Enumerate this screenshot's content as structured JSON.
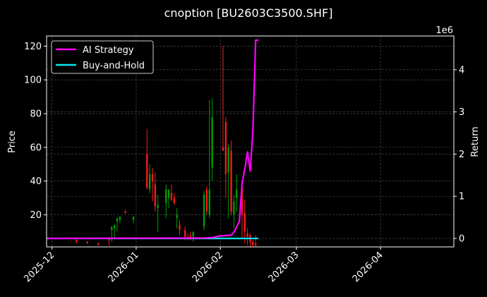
{
  "chart_data": {
    "type": "candlestick-with-line-overlay",
    "title": "cnoption [BU2603C3500.SHF]",
    "xlabel": "",
    "ylabel_left": "Price",
    "ylabel_right": "Return",
    "right_axis_exponent": "1e6",
    "grid": true,
    "legend_placement": "top-left",
    "x_ticks": [
      "2025-12",
      "2026-01",
      "2026-02",
      "2026-03",
      "2026-04"
    ],
    "xlim": [
      "2025-11-29",
      "2026-04-28"
    ],
    "ylim_left": [
      1,
      126
    ],
    "y_ticks_left": [
      20,
      40,
      60,
      80,
      100,
      120
    ],
    "ylim_right": [
      -0.2,
      4.8
    ],
    "y_ticks_right": [
      0,
      1,
      2,
      3,
      4
    ],
    "colors": {
      "up": "#00a000",
      "down": "#ff1a1a",
      "ai_strategy": "#ff00ff",
      "buy_and_hold": "#00e5ee",
      "grid": "#555555",
      "background": "#000000",
      "text": "#ffffff"
    },
    "series": [
      {
        "name": "AI Strategy",
        "axis": "right",
        "color": "#ff00ff",
        "x": [
          "2025-11-29",
          "2026-01-26",
          "2026-01-29",
          "2026-02-01",
          "2026-02-03",
          "2026-02-05",
          "2026-02-06",
          "2026-02-08",
          "2026-02-09",
          "2026-02-10",
          "2026-02-11",
          "2026-02-12",
          "2026-02-13",
          "2026-02-14",
          "2026-02-15"
        ],
        "y": [
          0.0,
          0.01,
          0.02,
          0.06,
          0.07,
          0.08,
          0.15,
          0.4,
          1.3,
          1.65,
          2.05,
          1.6,
          2.55,
          4.7,
          4.7
        ]
      },
      {
        "name": "Buy-and-Hold",
        "axis": "right",
        "color": "#00e5ee",
        "x": [
          "2025-11-29",
          "2026-02-15"
        ],
        "y": [
          0.0,
          0.0
        ]
      }
    ],
    "candles": {
      "axis": "left",
      "dates": [
        "2025-12-10",
        "2025-12-14",
        "2025-12-18",
        "2025-12-22",
        "2025-12-23",
        "2025-12-24",
        "2025-12-25",
        "2025-12-26",
        "2025-12-28",
        "2025-12-31",
        "2026-01-05",
        "2026-01-06",
        "2026-01-07",
        "2026-01-08",
        "2026-01-09",
        "2026-01-12",
        "2026-01-13",
        "2026-01-14",
        "2026-01-15",
        "2026-01-16",
        "2026-01-17",
        "2026-01-19",
        "2026-01-20",
        "2026-01-21",
        "2026-01-22",
        "2026-01-26",
        "2026-01-27",
        "2026-01-28",
        "2026-01-29",
        "2026-02-02",
        "2026-02-03",
        "2026-02-04",
        "2026-02-05",
        "2026-02-06",
        "2026-02-07",
        "2026-02-09",
        "2026-02-10",
        "2026-02-11",
        "2026-02-12",
        "2026-02-13",
        "2026-02-14"
      ],
      "open": [
        5,
        4,
        3,
        6,
        11,
        12,
        16,
        17,
        22,
        17,
        56,
        35,
        44,
        38,
        24,
        27,
        30,
        33,
        30,
        18,
        14,
        11,
        7,
        8,
        7,
        13,
        35,
        20,
        48,
        60,
        75,
        45,
        58,
        20,
        30,
        36,
        21,
        9,
        8,
        4,
        3
      ],
      "high": [
        5.5,
        4.5,
        3.5,
        7,
        13,
        14,
        18,
        19,
        23,
        19,
        71,
        50,
        48,
        45,
        32,
        38,
        35,
        38,
        33,
        24,
        17,
        13,
        9,
        10,
        10,
        34,
        37,
        88,
        89,
        120,
        78,
        62,
        64,
        32,
        44,
        38,
        29,
        12,
        9,
        5,
        8
      ],
      "low": [
        3,
        3,
        2,
        2,
        4,
        6,
        10,
        15,
        21,
        15,
        35,
        33,
        28,
        22,
        10,
        18,
        24,
        28,
        26,
        12,
        8,
        5,
        5,
        5,
        4,
        11,
        20,
        18,
        40,
        58,
        30,
        18,
        20,
        12,
        22,
        6,
        3,
        2,
        1,
        1,
        1
      ],
      "close": [
        4,
        3,
        2,
        5,
        13,
        14,
        18,
        19,
        21,
        19,
        36,
        44,
        40,
        25,
        26,
        35,
        35,
        29,
        27,
        20,
        11,
        7,
        6,
        6,
        10,
        32,
        22,
        35,
        78,
        58,
        44,
        60,
        22,
        28,
        35,
        20,
        10,
        7,
        4,
        2,
        2
      ]
    }
  }
}
